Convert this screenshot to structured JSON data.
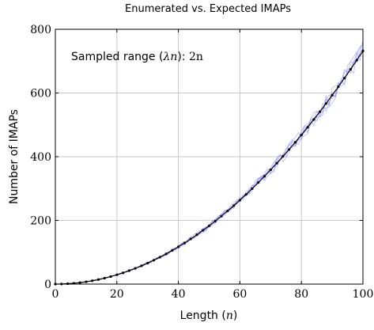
{
  "chart_data": {
    "type": "line",
    "title": "Enumerated vs. Expected IMAPs",
    "xlabel": "Length (n)",
    "xlabel_parts": {
      "prefix": "Length (",
      "var": "n",
      "suffix": ")"
    },
    "ylabel": "Number of IMAPs",
    "annotation": "Sampled range (λn): 2n",
    "annotation_parts": {
      "prefix": "Sampled range (",
      "var": "λn",
      "mid": "): ",
      "value": "2n"
    },
    "xlim": [
      0,
      100
    ],
    "ylim": [
      0,
      800
    ],
    "xticks": [
      0,
      20,
      40,
      60,
      80,
      100
    ],
    "yticks": [
      0,
      200,
      400,
      600,
      800
    ],
    "grid": true,
    "x_step": 2,
    "expected_curve": {
      "x": [
        0,
        50,
        100
      ],
      "y": [
        0,
        183,
        732
      ]
    },
    "colors": {
      "expected": "#000000",
      "samples": "#7b7bff",
      "grid": "#c8c8c8",
      "axis": "#000000"
    }
  }
}
